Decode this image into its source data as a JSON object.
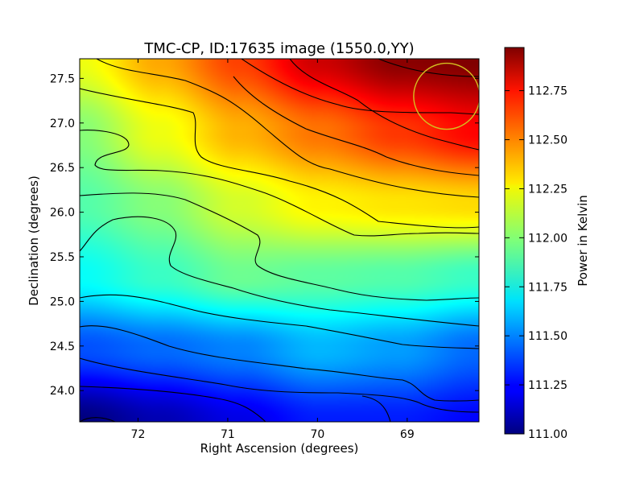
{
  "chart_data": {
    "type": "heatmap",
    "title": "TMC-CP, ID:17635 image (1550.0,YY)",
    "xlabel": "Right Ascension (degrees)",
    "ylabel": "Declination (degrees)",
    "xlim": [
      72.65,
      68.2
    ],
    "ylim": [
      23.65,
      27.72
    ],
    "x_ticks": [
      {
        "value": 72,
        "label": "72"
      },
      {
        "value": 71,
        "label": "71"
      },
      {
        "value": 70,
        "label": "70"
      },
      {
        "value": 69,
        "label": "69"
      }
    ],
    "y_ticks": [
      {
        "value": 24.0,
        "label": "24.0"
      },
      {
        "value": 24.5,
        "label": "24.5"
      },
      {
        "value": 25.0,
        "label": "25.0"
      },
      {
        "value": 25.5,
        "label": "25.5"
      },
      {
        "value": 26.0,
        "label": "26.0"
      },
      {
        "value": 26.5,
        "label": "26.5"
      },
      {
        "value": 27.0,
        "label": "27.0"
      },
      {
        "value": 27.5,
        "label": "27.5"
      }
    ],
    "colorbar": {
      "label": "Power in Kelvin",
      "min": 111.0,
      "max": 112.97,
      "colormap": "jet",
      "ticks": [
        "111.00",
        "111.25",
        "111.50",
        "111.75",
        "112.00",
        "112.25",
        "112.50",
        "112.75"
      ]
    },
    "field_samples": {
      "ra": [
        72.65,
        71.765,
        70.875,
        69.985,
        69.095,
        68.2
      ],
      "dec": [
        27.72,
        26.906,
        26.092,
        25.278,
        24.464,
        23.65
      ],
      "values": [
        [
          112.2,
          112.4,
          112.6,
          112.82,
          112.95,
          112.97
        ],
        [
          112.0,
          112.2,
          112.38,
          112.5,
          112.62,
          112.72
        ],
        [
          111.9,
          112.0,
          112.15,
          112.25,
          112.28,
          112.3
        ],
        [
          111.75,
          111.85,
          111.95,
          111.92,
          111.9,
          111.85
        ],
        [
          111.4,
          111.45,
          111.5,
          111.6,
          111.55,
          111.45
        ],
        [
          111.0,
          111.1,
          111.2,
          111.3,
          111.3,
          111.25
        ]
      ]
    },
    "contours": {
      "color": "#000000",
      "count": 11
    },
    "marker_circle": {
      "ra": 68.56,
      "dec": 27.3,
      "color": "#d4c020"
    }
  }
}
